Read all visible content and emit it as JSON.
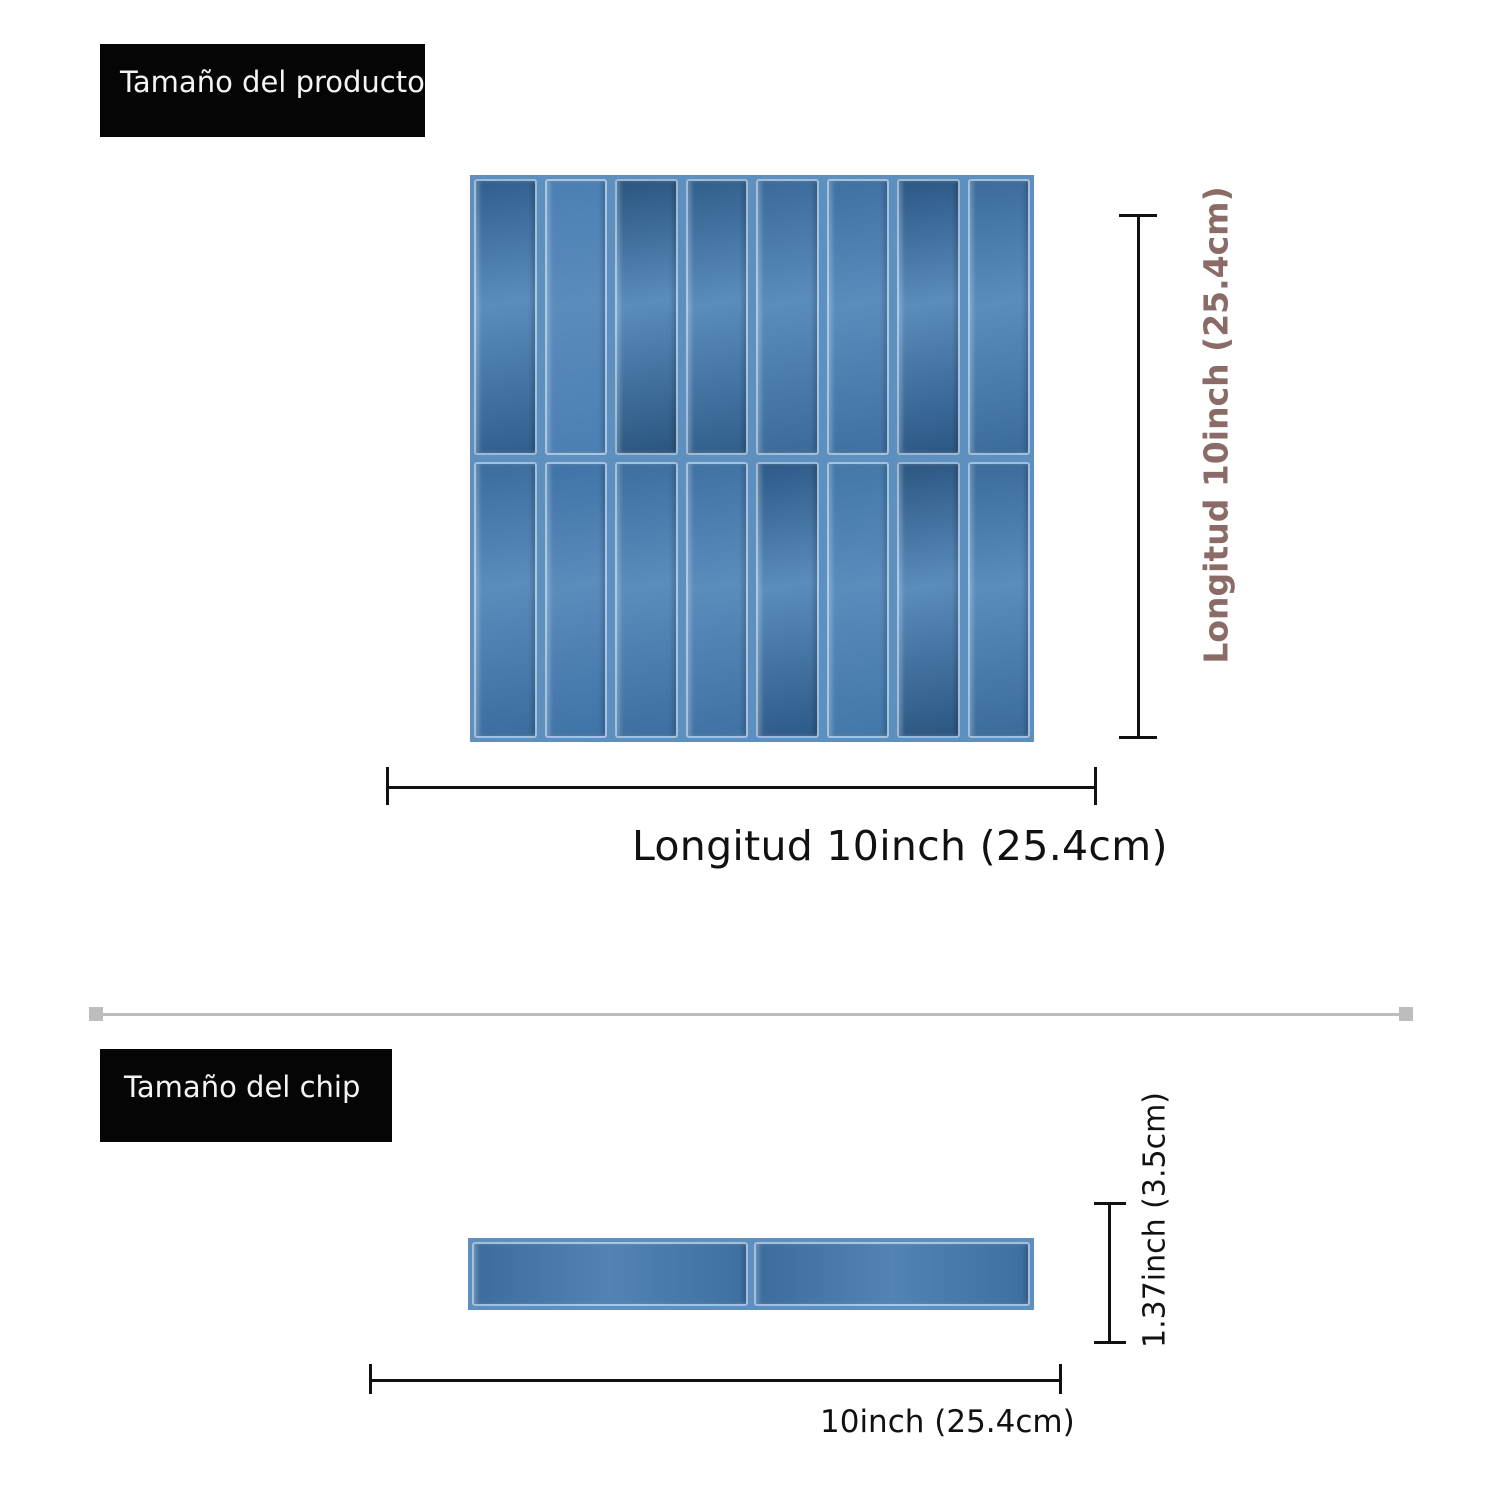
{
  "product_section": {
    "label": "Tamaño del producto",
    "width_label": "Longitud 10inch (25.4cm)",
    "height_label": "Longitud 10inch (25.4cm)",
    "tile_columns": 8,
    "tile_rows": 2
  },
  "chip_section": {
    "label": "Tamaño del chip",
    "width_label": "10inch (25.4cm)",
    "height_label": "1.37inch (3.5cm)",
    "chip_tiles": 2
  },
  "colors": {
    "tile_blue": "#5d8fbf",
    "height_label_color": "#8a6b68",
    "label_box": "#050505",
    "divider": "#bdbdbd"
  }
}
